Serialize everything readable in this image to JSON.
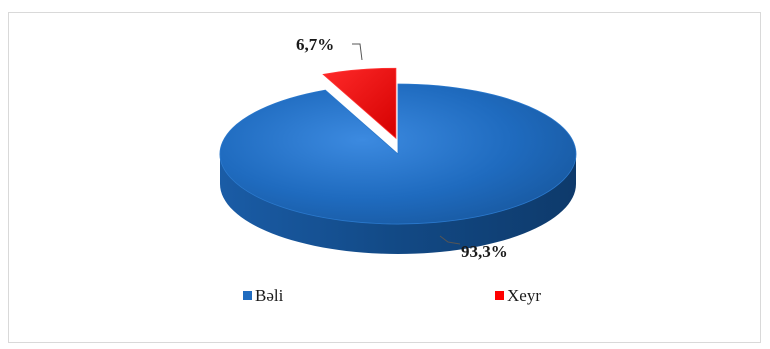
{
  "chart_data": {
    "type": "pie",
    "style": "3d-exploded",
    "slices": [
      {
        "name": "Bəli",
        "value": 93.3,
        "label": "93,3%",
        "color": "#1f6bbf",
        "side_color": "#144a85",
        "exploded": false
      },
      {
        "name": "Xeyr",
        "value": 6.7,
        "label": "6,7%",
        "color": "#ff0000",
        "side_color": "#a50000",
        "exploded": true
      }
    ],
    "legend": {
      "placement": "bottom",
      "items": [
        {
          "label": "Bəli",
          "color": "#1f6bbf"
        },
        {
          "label": "Xeyr",
          "color": "#ff0000"
        }
      ]
    }
  }
}
